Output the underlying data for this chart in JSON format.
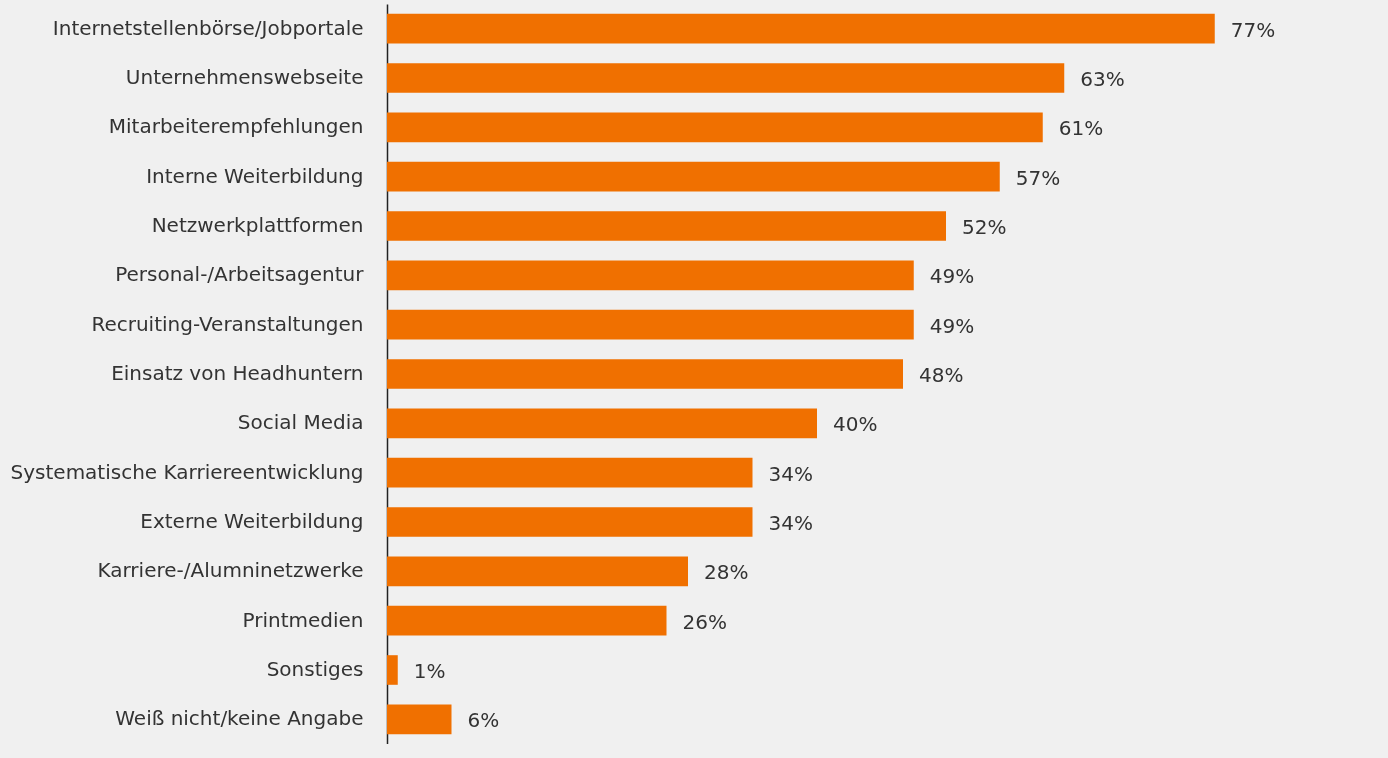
{
  "chart_data": {
    "type": "bar",
    "orientation": "horizontal",
    "color": "#f07000",
    "categories": [
      "Internetstellenbörse/Jobportale",
      "Unternehmenswebseite",
      "Mitarbeiterempfehlungen",
      "Interne Weiterbildung",
      "Netzwerkplattformen",
      "Personal-/Arbeitsagentur",
      "Recruiting-Veranstaltungen",
      "Einsatz von Headhuntern",
      "Social Media",
      "Systematische Karriereentwicklung",
      "Externe Weiterbildung",
      "Karriere-/Alumninetzwerke",
      "Printmedien",
      "Sonstiges",
      "Weiß nicht/keine Angabe"
    ],
    "values": [
      77,
      63,
      61,
      57,
      52,
      49,
      49,
      48,
      40,
      34,
      34,
      28,
      26,
      1,
      6
    ],
    "value_labels": [
      "77%",
      "63%",
      "61%",
      "57%",
      "52%",
      "49%",
      "49%",
      "48%",
      "40%",
      "34%",
      "34%",
      "28%",
      "26%",
      "1%",
      "6%"
    ],
    "grid": false
  }
}
